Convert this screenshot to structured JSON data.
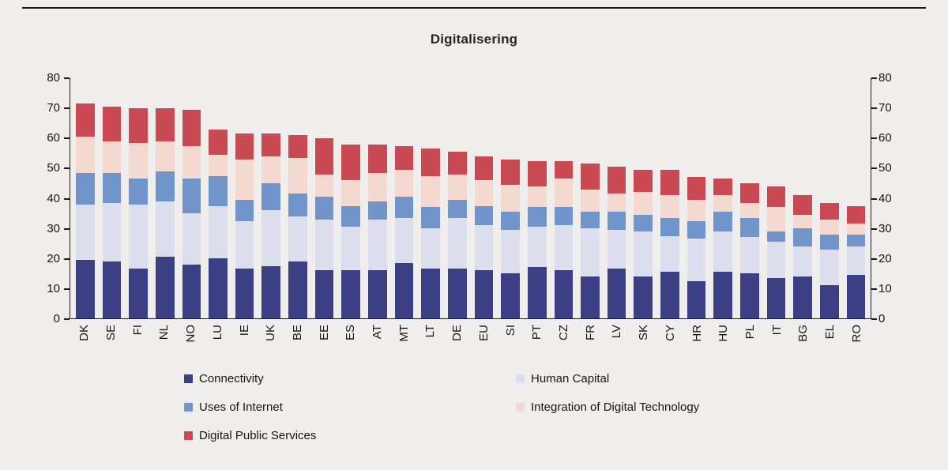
{
  "figure": {
    "background_color": "#efeeec",
    "top_rule_color": "#1b1b1e"
  },
  "chart_data": {
    "type": "bar",
    "stacked": true,
    "title": "Digitalisering",
    "categories": [
      "DK",
      "SE",
      "FI",
      "NL",
      "NO",
      "LU",
      "IE",
      "UK",
      "BE",
      "EE",
      "ES",
      "AT",
      "MT",
      "LT",
      "DE",
      "EU",
      "SI",
      "PT",
      "CZ",
      "FR",
      "LV",
      "SK",
      "CY",
      "HR",
      "HU",
      "PL",
      "IT",
      "BG",
      "EL",
      "RO"
    ],
    "series": [
      {
        "name": "Connectivity",
        "color": "#3b4084",
        "values": [
          19.5,
          19,
          16.5,
          20.5,
          18,
          20,
          16.5,
          17.5,
          19,
          16,
          16,
          16,
          18.5,
          16.5,
          16.5,
          16,
          15,
          17,
          16,
          14,
          16.5,
          14,
          15.5,
          12.5,
          15.5,
          15,
          13.5,
          14,
          11,
          14.5
        ]
      },
      {
        "name": "Human Capital",
        "color": "#dcdeee",
        "values": [
          18.5,
          19.5,
          21.5,
          18.5,
          17,
          17.5,
          16,
          18.5,
          15,
          17,
          14.5,
          17,
          15,
          13.5,
          17,
          15,
          14.5,
          13.5,
          15,
          16,
          13,
          15,
          12,
          14,
          13.5,
          12,
          12,
          10,
          12,
          9.5
        ]
      },
      {
        "name": "Uses of Internet",
        "color": "#7195cb",
        "values": [
          10.5,
          10,
          8.5,
          10,
          11.5,
          10,
          7,
          9,
          7.5,
          7.5,
          7,
          6,
          7,
          7,
          6,
          6.5,
          6,
          6.5,
          6,
          5.5,
          6,
          5.5,
          6,
          6,
          6.5,
          6.5,
          3.5,
          6,
          5,
          4
        ]
      },
      {
        "name": "Integration of Digital Technology",
        "color": "#f3d9d0",
        "values": [
          12,
          10.5,
          12,
          10,
          11,
          7,
          13.5,
          9,
          12,
          7.5,
          8.5,
          9.5,
          9,
          10.5,
          8.5,
          8.5,
          9,
          7,
          9.5,
          7.5,
          6,
          7.5,
          7.5,
          7,
          5.5,
          5,
          8,
          4.5,
          5,
          3.5
        ]
      },
      {
        "name": "Digital Public Services",
        "color": "#c94a53",
        "values": [
          11,
          11.5,
          11.5,
          11,
          12,
          8.5,
          8.5,
          7.5,
          7.5,
          12,
          12,
          9.5,
          8,
          9,
          7.5,
          8,
          8.5,
          8.5,
          6,
          8.5,
          9,
          7.5,
          8.5,
          7.5,
          5.5,
          6.5,
          7,
          6.5,
          5.5,
          6
        ]
      }
    ],
    "ylim": [
      0,
      80
    ],
    "yticks": [
      0,
      10,
      20,
      30,
      40,
      50,
      60,
      70,
      80
    ],
    "dual_y_axis": true,
    "grid": false,
    "legend_position": "bottom"
  }
}
